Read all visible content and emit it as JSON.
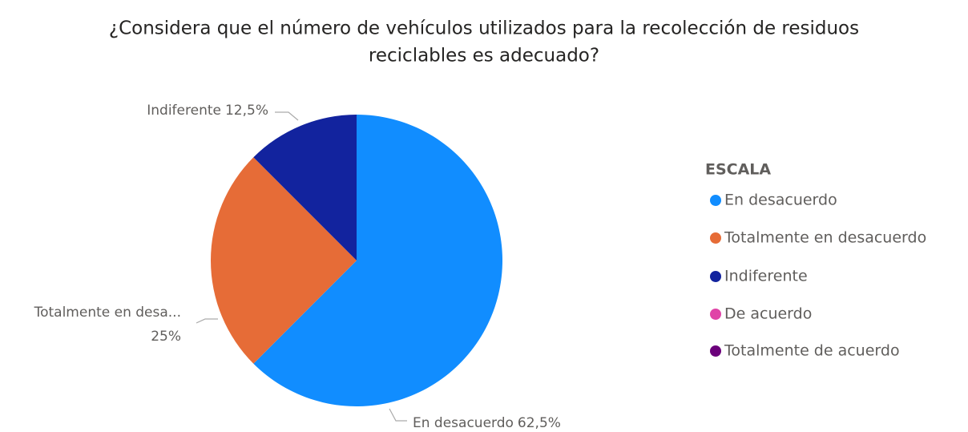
{
  "chart_data": {
    "type": "pie",
    "title": [
      "¿Considera que el número de vehículos utilizados para la recolección de residuos",
      "reciclables es adecuado?"
    ],
    "legend_title": "ESCALA",
    "legend": "right",
    "categories": [
      "En desacuerdo",
      "Totalmente en desacuerdo",
      "Indiferente",
      "De acuerdo",
      "Totalmente de acuerdo"
    ],
    "values": [
      62.5,
      25,
      12.5,
      0,
      0
    ],
    "value_labels": [
      "62,5%",
      "25%",
      "12,5%",
      null,
      null
    ],
    "label_names": [
      "En desacuerdo",
      "Totalmente en desa...",
      "Indiferente",
      null,
      null
    ],
    "colors": [
      "#118DFF",
      "#E66C37",
      "#12239E",
      "#E044A7",
      "#6B007B"
    ]
  }
}
